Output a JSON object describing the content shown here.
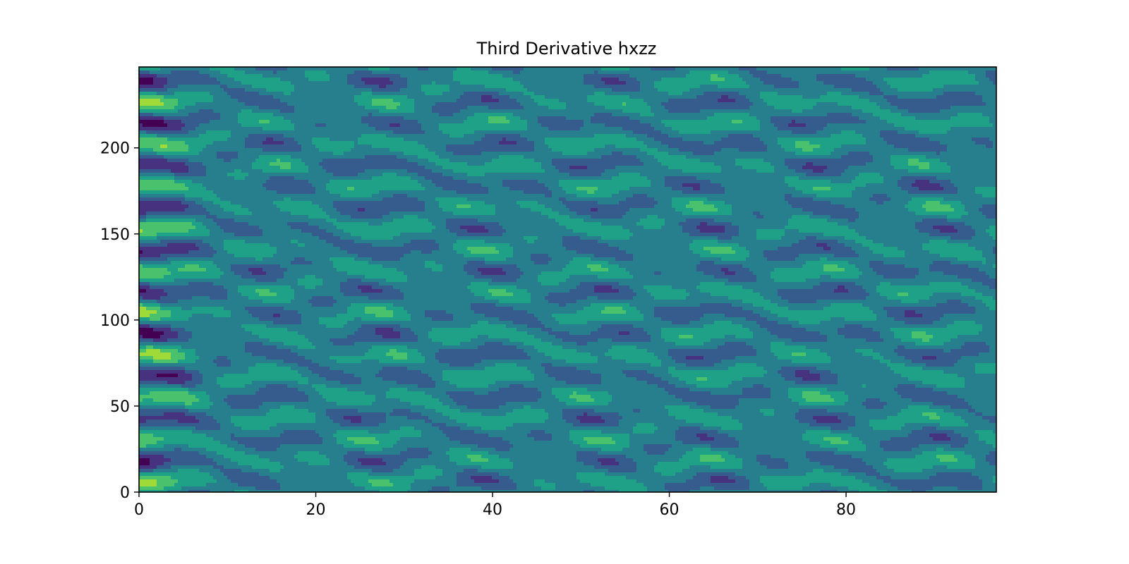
{
  "chart_data": {
    "type": "contourf",
    "title": "Third Derivative hxzz",
    "xlabel": "",
    "ylabel": "",
    "xlim": [
      0,
      97
    ],
    "ylim": [
      0,
      247
    ],
    "x_ticks": [
      0,
      20,
      40,
      60,
      80
    ],
    "y_ticks": [
      0,
      50,
      100,
      150,
      200
    ],
    "colormap": "viridis",
    "levels": 8,
    "grid": false,
    "legend": "none",
    "colors": {
      "viridis": [
        "#440154",
        "#46327e",
        "#365c8d",
        "#277f8e",
        "#1fa187",
        "#4ac16d",
        "#a0da39",
        "#fde725"
      ],
      "frame": "#000000",
      "background": "#ffffff"
    },
    "field": {
      "description_of_pattern": "banded oscillation along y, slow modulation along x, strongest at x=0",
      "row_period_y": 24.5,
      "col_period_x": 25,
      "base_level": 0.44
    }
  }
}
